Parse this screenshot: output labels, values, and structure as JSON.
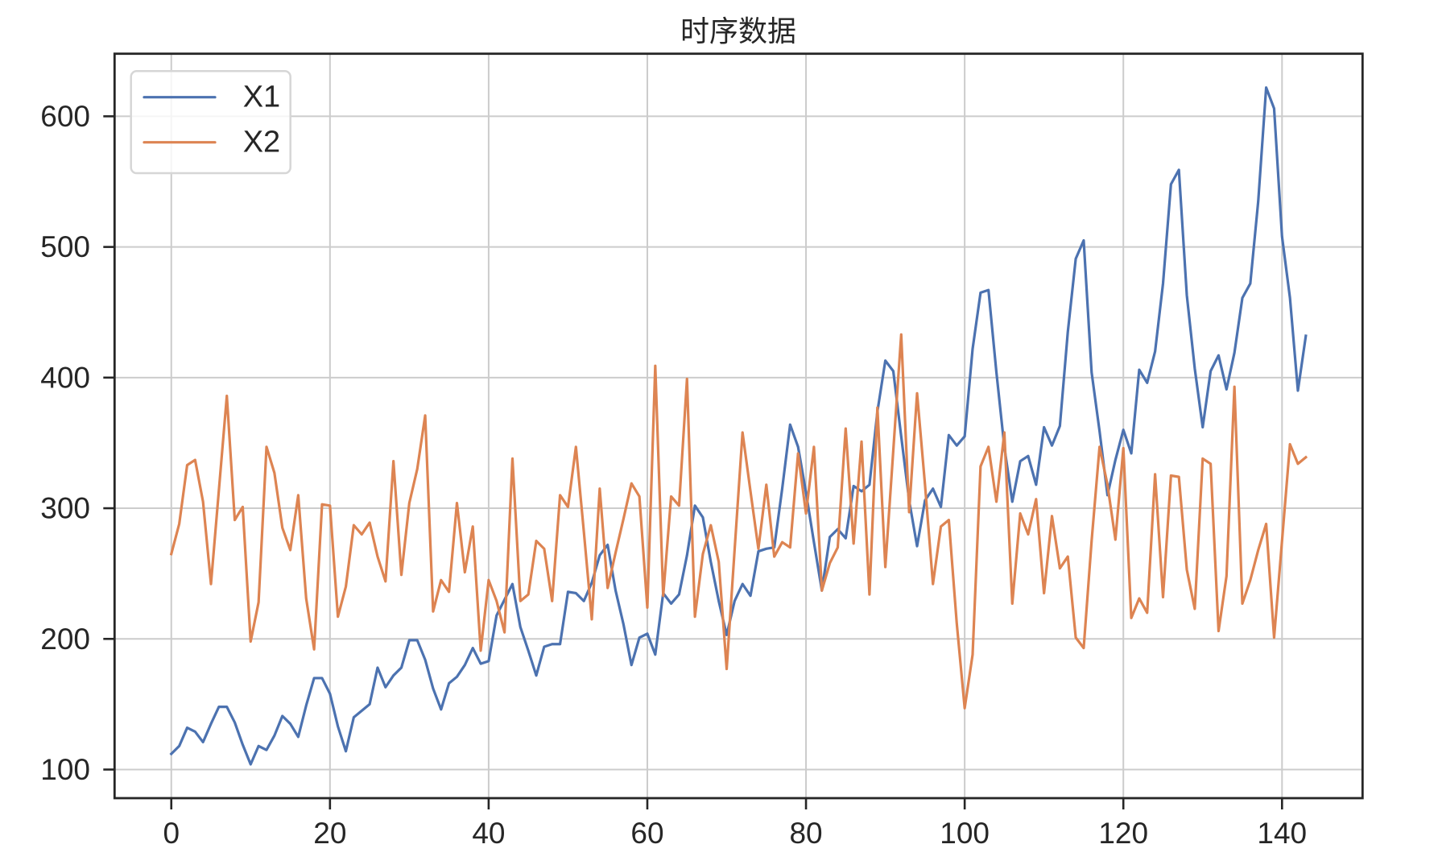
{
  "chart_data": {
    "type": "line",
    "title": "时序数据",
    "xlabel": "",
    "ylabel": "",
    "grid": true,
    "xlim": [
      -7.15,
      150.15
    ],
    "ylim": [
      78.1,
      647.9
    ],
    "xticks": [
      0,
      20,
      40,
      60,
      80,
      100,
      120,
      140
    ],
    "xtick_labels": [
      "0",
      "20",
      "40",
      "60",
      "80",
      "100",
      "120",
      "140"
    ],
    "yticks": [
      100,
      200,
      300,
      400,
      500,
      600
    ],
    "ytick_labels": [
      "100",
      "200",
      "300",
      "400",
      "500",
      "600"
    ],
    "legend": {
      "position": "upper left",
      "entries": [
        "X1",
        "X2"
      ]
    },
    "x": [
      0,
      1,
      2,
      3,
      4,
      5,
      6,
      7,
      8,
      9,
      10,
      11,
      12,
      13,
      14,
      15,
      16,
      17,
      18,
      19,
      20,
      21,
      22,
      23,
      24,
      25,
      26,
      27,
      28,
      29,
      30,
      31,
      32,
      33,
      34,
      35,
      36,
      37,
      38,
      39,
      40,
      41,
      42,
      43,
      44,
      45,
      46,
      47,
      48,
      49,
      50,
      51,
      52,
      53,
      54,
      55,
      56,
      57,
      58,
      59,
      60,
      61,
      62,
      63,
      64,
      65,
      66,
      67,
      68,
      69,
      70,
      71,
      72,
      73,
      74,
      75,
      76,
      77,
      78,
      79,
      80,
      81,
      82,
      83,
      84,
      85,
      86,
      87,
      88,
      89,
      90,
      91,
      92,
      93,
      94,
      95,
      96,
      97,
      98,
      99,
      100,
      101,
      102,
      103,
      104,
      105,
      106,
      107,
      108,
      109,
      110,
      111,
      112,
      113,
      114,
      115,
      116,
      117,
      118,
      119,
      120,
      121,
      122,
      123,
      124,
      125,
      126,
      127,
      128,
      129,
      130,
      131,
      132,
      133,
      134,
      135,
      136,
      137,
      138,
      139,
      140,
      141,
      142,
      143
    ],
    "series": [
      {
        "name": "X1",
        "color": "#4C72B0",
        "values": [
          112,
          118,
          132,
          129,
          121,
          135,
          148,
          148,
          136,
          119,
          104,
          118,
          115,
          126,
          141,
          135,
          125,
          149,
          170,
          170,
          158,
          133,
          114,
          140,
          145,
          150,
          178,
          163,
          172,
          178,
          199,
          199,
          184,
          162,
          146,
          166,
          171,
          180,
          193,
          181,
          183,
          218,
          230,
          242,
          209,
          191,
          172,
          194,
          196,
          196,
          236,
          235,
          229,
          243,
          264,
          272,
          237,
          211,
          180,
          201,
          204,
          188,
          235,
          227,
          234,
          264,
          302,
          293,
          259,
          229,
          203,
          229,
          242,
          233,
          267,
          269,
          270,
          315,
          364,
          347,
          312,
          274,
          237,
          278,
          284,
          277,
          317,
          313,
          318,
          374,
          413,
          405,
          355,
          306,
          271,
          306,
          315,
          301,
          356,
          348,
          355,
          422,
          465,
          467,
          404,
          347,
          305,
          336,
          340,
          318,
          362,
          348,
          363,
          435,
          491,
          505,
          404,
          359,
          310,
          337,
          360,
          342,
          406,
          396,
          420,
          472,
          548,
          559,
          463,
          407,
          362,
          405,
          417,
          391,
          419,
          461,
          472,
          535,
          622,
          606,
          508,
          461,
          390,
          432
        ]
      },
      {
        "name": "X2",
        "color": "#DD8452",
        "values": [
          265,
          288,
          333,
          337,
          305,
          242,
          314,
          386,
          291,
          301,
          198,
          228,
          347,
          327,
          285,
          268,
          310,
          231,
          192,
          303,
          302,
          217,
          240,
          287,
          280,
          289,
          263,
          244,
          336,
          249,
          304,
          330,
          371,
          221,
          245,
          236,
          304,
          251,
          286,
          191,
          245,
          229,
          205,
          338,
          229,
          234,
          275,
          269,
          229,
          310,
          301,
          347,
          282,
          215,
          315,
          239,
          266,
          292,
          319,
          309,
          224,
          409,
          233,
          309,
          302,
          399,
          217,
          265,
          287,
          259,
          177,
          268,
          358,
          313,
          269,
          318,
          263,
          274,
          270,
          342,
          296,
          347,
          237,
          258,
          270,
          361,
          273,
          351,
          234,
          377,
          255,
          344,
          433,
          297,
          388,
          318,
          242,
          286,
          291,
          212,
          147,
          188,
          332,
          347,
          305,
          358,
          227,
          296,
          280,
          307,
          235,
          294,
          254,
          263,
          201,
          193,
          275,
          347,
          318,
          276,
          346,
          216,
          231,
          220,
          326,
          232,
          325,
          324,
          253,
          223,
          338,
          334,
          206,
          248,
          393,
          227,
          245,
          268,
          288,
          201,
          275,
          349,
          334,
          339
        ]
      }
    ]
  }
}
